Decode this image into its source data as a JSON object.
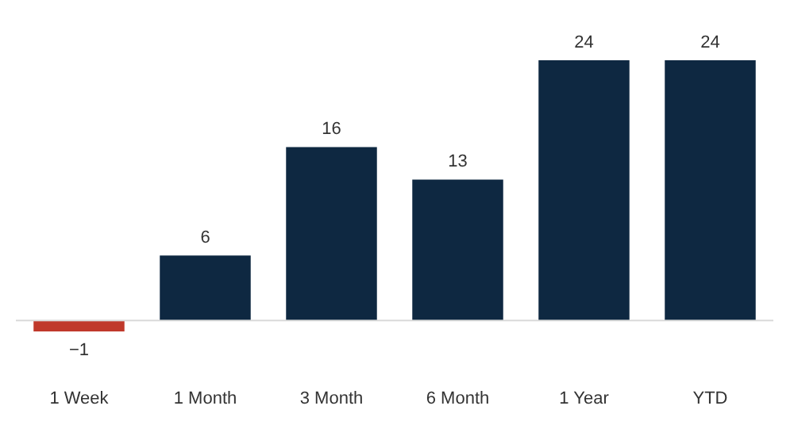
{
  "chart_data": {
    "type": "bar",
    "categories": [
      "1 Week",
      "1 Month",
      "3 Month",
      "6 Month",
      "1 Year",
      "YTD"
    ],
    "values": [
      -1,
      6,
      16,
      13,
      24,
      24
    ],
    "colors": [
      "#c0392b",
      "#0e2841",
      "#0e2841",
      "#0e2841",
      "#0e2841",
      "#0e2841"
    ],
    "data_labels": true,
    "grid": false,
    "legend": false
  }
}
